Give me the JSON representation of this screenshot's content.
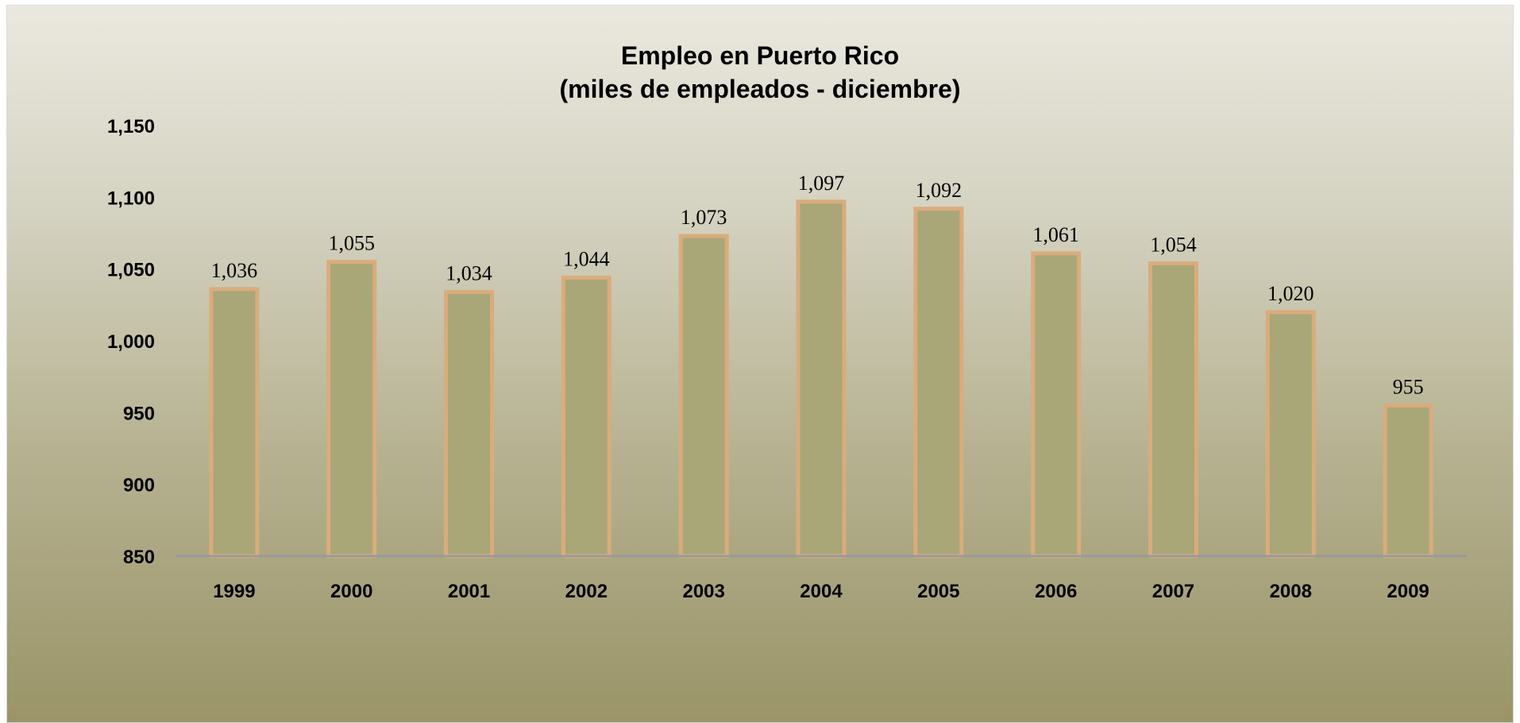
{
  "chart_data": {
    "type": "bar",
    "title": "Empleo en Puerto Rico",
    "subtitle": "(miles de empleados - diciembre)",
    "categories": [
      "1999",
      "2000",
      "2001",
      "2002",
      "2003",
      "2004",
      "2005",
      "2006",
      "2007",
      "2008",
      "2009"
    ],
    "values": [
      1036,
      1055,
      1034,
      1044,
      1073,
      1097,
      1092,
      1061,
      1054,
      1020,
      955
    ],
    "value_labels": [
      "1,036",
      "1,055",
      "1,034",
      "1,044",
      "1,073",
      "1,097",
      "1,092",
      "1,061",
      "1,054",
      "1,020",
      "955"
    ],
    "yticks": [
      850,
      900,
      950,
      1000,
      1050,
      1100,
      1150
    ],
    "ytick_labels": [
      "850",
      "900",
      "950",
      "1,000",
      "1,050",
      "1,100",
      "1,150"
    ],
    "ylim": [
      850,
      1150
    ],
    "xlabel": "",
    "ylabel": "",
    "grid": false,
    "legend": "none",
    "colors": {
      "bar_fill": "#a9a678",
      "bar_border": "#d9ac7c",
      "axis_line": "#9a9a9a"
    }
  }
}
